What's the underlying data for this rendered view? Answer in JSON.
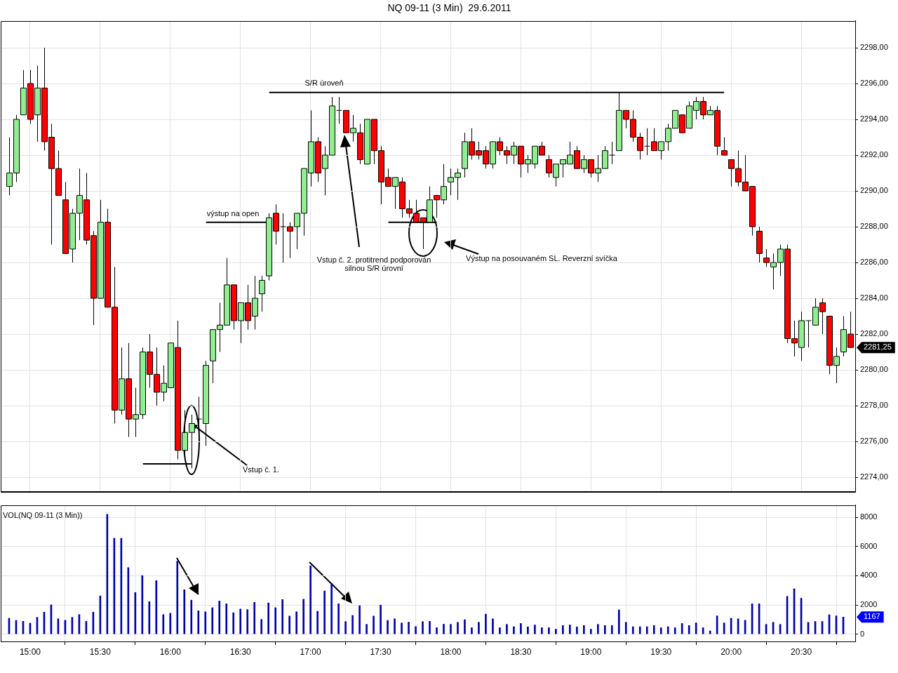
{
  "chart_data": [
    {
      "type": "candlestick",
      "title": "NQ 09-11 (3 Min)  29.6.2011",
      "x": [
        14.85,
        14.9,
        14.95,
        15,
        15.05,
        15.1,
        15.15,
        15.2,
        15.25,
        15.3,
        15.35,
        15.4,
        15.45,
        15.5,
        15.55,
        15.6,
        15.65,
        15.7,
        15.75,
        15.8,
        15.85,
        15.9,
        15.95,
        16,
        16.05,
        16.1,
        16.15,
        16.2,
        16.25,
        16.3,
        16.35,
        16.4,
        16.45,
        16.5,
        16.55,
        16.6,
        16.65,
        16.7,
        16.75,
        16.8,
        16.85,
        16.9,
        16.95,
        17,
        17.05,
        17.1,
        17.15,
        17.2,
        17.25,
        17.3,
        17.35,
        17.4,
        17.45,
        17.5,
        17.55,
        17.6,
        17.65,
        17.7,
        17.75,
        17.8,
        17.85,
        17.9,
        17.95,
        18,
        18.05,
        18.1,
        18.15,
        18.2,
        18.25,
        18.3,
        18.35,
        18.4,
        18.45,
        18.5,
        18.55,
        18.6,
        18.65,
        18.7,
        18.75,
        18.8,
        18.85,
        18.9,
        18.95,
        19,
        19.05,
        19.1,
        19.15,
        19.2,
        19.25,
        19.3,
        19.35,
        19.4,
        19.45,
        19.5,
        19.55,
        19.6,
        19.65,
        19.7,
        19.75,
        19.8,
        19.85,
        19.9,
        19.95,
        20,
        20.05,
        20.1,
        20.15,
        20.2,
        20.25,
        20.3,
        20.35,
        20.4,
        20.45,
        20.5,
        20.55,
        20.6,
        20.65,
        20.7,
        20.75,
        20.8,
        20.85
      ],
      "ohlc": [
        [
          2290.25,
          2293,
          2289.75,
          2291
        ],
        [
          2291,
          2294.25,
          2290.5,
          2294
        ],
        [
          2294.25,
          2296.75,
          2294.25,
          2295.75
        ],
        [
          2296,
          2296.75,
          2293.75,
          2294
        ],
        [
          2294.25,
          2297,
          2292.75,
          2295.75
        ],
        [
          2295.75,
          2298,
          2292.25,
          2292.75
        ],
        [
          2293,
          2293.75,
          2287,
          2291.25
        ],
        [
          2291.25,
          2292.25,
          2289.75,
          2289.75
        ],
        [
          2289.5,
          2290.5,
          2286.5,
          2286.5
        ],
        [
          2286.75,
          2289,
          2286,
          2288.75
        ],
        [
          2288.75,
          2291.25,
          2287.25,
          2289.75
        ],
        [
          2289.5,
          2291,
          2287,
          2287.25
        ],
        [
          2287.5,
          2287.75,
          2282.5,
          2284
        ],
        [
          2284,
          2289.5,
          2284,
          2288.25
        ],
        [
          2288.25,
          2289,
          2283.5,
          2283.5
        ],
        [
          2283.5,
          2285.75,
          2277,
          2277.75
        ],
        [
          2277.75,
          2281.25,
          2277.5,
          2279.5
        ],
        [
          2279.5,
          2281.5,
          2276.25,
          2277.25
        ],
        [
          2277.25,
          2279,
          2276.25,
          2277.5
        ],
        [
          2277.5,
          2281.25,
          2277.25,
          2281
        ],
        [
          2281,
          2282,
          2279,
          2279.75
        ],
        [
          2279.75,
          2281.25,
          2278,
          2278.75
        ],
        [
          2278.75,
          2280.25,
          2278.25,
          2279.25
        ],
        [
          2279,
          2281.5,
          2279,
          2281.5
        ],
        [
          2281.25,
          2282.75,
          2275,
          2275.5
        ],
        [
          2275.5,
          2277.75,
          2275,
          2276.5
        ],
        [
          2276.5,
          2277.5,
          2274.5,
          2277
        ],
        [
          2277.25,
          2278.5,
          2276.25,
          2277.25
        ],
        [
          2277,
          2280.5,
          2275.75,
          2280.25
        ],
        [
          2280.5,
          2282.25,
          2279.25,
          2282.25
        ],
        [
          2282.25,
          2283.75,
          2281,
          2282.5
        ],
        [
          2282.5,
          2286.25,
          2282.5,
          2284.75
        ],
        [
          2284.75,
          2284.75,
          2282.25,
          2282.75
        ],
        [
          2282.75,
          2283.75,
          2281.5,
          2283.75
        ],
        [
          2283.75,
          2284.75,
          2282.25,
          2282.75
        ],
        [
          2283,
          2285.25,
          2282.25,
          2284
        ],
        [
          2284.25,
          2285.25,
          2283.25,
          2285
        ],
        [
          2285.25,
          2288.75,
          2285,
          2288.5
        ],
        [
          2288.75,
          2289.25,
          2287,
          2287.75
        ],
        [
          2288,
          2288.75,
          2286,
          2288
        ],
        [
          2288,
          2288.25,
          2286.25,
          2287.75
        ],
        [
          2288,
          2288.75,
          2286.75,
          2288.75
        ],
        [
          2288.75,
          2291.25,
          2287.5,
          2291.25
        ],
        [
          2291,
          2294.5,
          2290.25,
          2292.75
        ],
        [
          2292.75,
          2293,
          2290.5,
          2291
        ],
        [
          2291.25,
          2292.5,
          2289.75,
          2292
        ],
        [
          2292,
          2295.25,
          2292,
          2294.75
        ],
        [
          2294.5,
          2295.25,
          2293.75,
          2294.5
        ],
        [
          2294.5,
          2294.5,
          2293.25,
          2293.25
        ],
        [
          2293.25,
          2294.25,
          2292.75,
          2293.5
        ],
        [
          2293.25,
          2293.75,
          2291.5,
          2291.75
        ],
        [
          2291.5,
          2294,
          2291.5,
          2294
        ],
        [
          2294,
          2294,
          2291.5,
          2292.25
        ],
        [
          2292.25,
          2292.5,
          2289.25,
          2290.5
        ],
        [
          2290.75,
          2291.25,
          2290.25,
          2290.25
        ],
        [
          2290.25,
          2290.75,
          2289,
          2290.75
        ],
        [
          2290.5,
          2290.75,
          2288.5,
          2289
        ],
        [
          2289,
          2289.5,
          2288.5,
          2288.75
        ],
        [
          2288.75,
          2289.5,
          2288.25,
          2288.25
        ],
        [
          2288.5,
          2288.5,
          2286.75,
          2288.25
        ],
        [
          2288.25,
          2290.25,
          2288.25,
          2289.5
        ],
        [
          2289.75,
          2289.75,
          2288.5,
          2289.5
        ],
        [
          2289.5,
          2291.5,
          2289.25,
          2290.25
        ],
        [
          2290.5,
          2291.25,
          2289.75,
          2290.75
        ],
        [
          2290.75,
          2291.25,
          2289.5,
          2291
        ],
        [
          2291.25,
          2293.25,
          2290.75,
          2292.75
        ],
        [
          2292.75,
          2293.5,
          2291.75,
          2292
        ],
        [
          2292.25,
          2292.75,
          2291.75,
          2292
        ],
        [
          2292.25,
          2292.5,
          2291.25,
          2291.5
        ],
        [
          2291.5,
          2292.75,
          2291.25,
          2292.75
        ],
        [
          2292.75,
          2293,
          2292,
          2292.25
        ],
        [
          2292.25,
          2292.5,
          2291.5,
          2292
        ],
        [
          2292,
          2292.75,
          2291.5,
          2292.5
        ],
        [
          2292.5,
          2292.5,
          2290.75,
          2291.5
        ],
        [
          2291.5,
          2292,
          2291,
          2291.75
        ],
        [
          2291.5,
          2292.5,
          2291.25,
          2292.5
        ],
        [
          2292.5,
          2292.75,
          2292,
          2292
        ],
        [
          2291.75,
          2292,
          2290.75,
          2291
        ],
        [
          2290.75,
          2291.5,
          2290.25,
          2291.5
        ],
        [
          2291.5,
          2291.75,
          2290.75,
          2291.75
        ],
        [
          2291.5,
          2292.75,
          2291.5,
          2292
        ],
        [
          2292.25,
          2292.5,
          2291.25,
          2291.25
        ],
        [
          2291.25,
          2292,
          2291,
          2291.75
        ],
        [
          2291.75,
          2291.75,
          2290.75,
          2291
        ],
        [
          2291,
          2292,
          2290.5,
          2291.25
        ],
        [
          2291.25,
          2292.5,
          2291.25,
          2292.25
        ],
        [
          2292,
          2292.75,
          2291.5,
          2292
        ],
        [
          2292.25,
          2295.5,
          2292.25,
          2294.5
        ],
        [
          2294.5,
          2294.5,
          2293.5,
          2294
        ],
        [
          2294,
          2294.5,
          2292.75,
          2293
        ],
        [
          2293,
          2293.25,
          2291.75,
          2292.25
        ],
        [
          2292.5,
          2293.5,
          2292,
          2292.5
        ],
        [
          2292.75,
          2293.5,
          2292.25,
          2292.25
        ],
        [
          2292.25,
          2292.75,
          2291.75,
          2292.75
        ],
        [
          2292.75,
          2293.75,
          2292.25,
          2293.5
        ],
        [
          2293.5,
          2294.5,
          2293.5,
          2294.5
        ],
        [
          2294.25,
          2294.25,
          2293.25,
          2293.25
        ],
        [
          2293.5,
          2295,
          2293.5,
          2294.75
        ],
        [
          2294.5,
          2295.25,
          2294,
          2295
        ],
        [
          2295,
          2295.25,
          2294,
          2294.25
        ],
        [
          2294.25,
          2294.75,
          2294.25,
          2294.5
        ],
        [
          2294.5,
          2294.75,
          2292,
          2292.5
        ],
        [
          2292.25,
          2293,
          2292,
          2292
        ],
        [
          2291.75,
          2291.75,
          2290.25,
          2291.25
        ],
        [
          2291.25,
          2292.25,
          2290.25,
          2290.5
        ],
        [
          2290.5,
          2292,
          2290,
          2290
        ],
        [
          2290.25,
          2290.25,
          2287.5,
          2288
        ],
        [
          2287.75,
          2288,
          2286,
          2286.5
        ],
        [
          2286.25,
          2286.75,
          2285.75,
          2286
        ],
        [
          2285.75,
          2286.5,
          2284.5,
          2286
        ],
        [
          2286,
          2287,
          2285.25,
          2286.75
        ],
        [
          2286.75,
          2287,
          2281.5,
          2281.75
        ],
        [
          2281.75,
          2282.75,
          2280.75,
          2281.5
        ],
        [
          2281.25,
          2283.25,
          2280.5,
          2282.75
        ],
        [
          2282.75,
          2282.75,
          2281.25,
          2282.75
        ],
        [
          2282.5,
          2284,
          2282.5,
          2283.5
        ],
        [
          2283.75,
          2284,
          2282,
          2283.25
        ],
        [
          2283,
          2283,
          2279.75,
          2280.25
        ],
        [
          2280.25,
          2281.25,
          2279.25,
          2280.75
        ],
        [
          2281,
          2283,
          2280.75,
          2282.25
        ],
        [
          2282,
          2283.25,
          2281.25,
          2281.25
        ]
      ],
      "colors": [
        "#90ee90",
        "#90ee90",
        "#90ee90",
        "#ff0000",
        "#90ee90",
        "#ff0000",
        "#ff0000",
        "#ff0000",
        "#ff0000",
        "#90ee90",
        "#90ee90",
        "#ff0000",
        "#ff0000",
        "#90ee90",
        "#ff0000",
        "#ff0000",
        "#90ee90",
        "#ff0000",
        "#90ee90",
        "#90ee90",
        "#ff0000",
        "#ff0000",
        "#90ee90",
        "#90ee90",
        "#ff0000",
        "#90ee90",
        "#90ee90",
        "#000000",
        "#90ee90",
        "#90ee90",
        "#90ee90",
        "#90ee90",
        "#ff0000",
        "#90ee90",
        "#ff0000",
        "#90ee90",
        "#90ee90",
        "#90ee90",
        "#ff0000",
        "#000000",
        "#ff0000",
        "#90ee90",
        "#90ee90",
        "#90ee90",
        "#ff0000",
        "#90ee90",
        "#90ee90",
        "#000000",
        "#ff0000",
        "#90ee90",
        "#ff0000",
        "#90ee90",
        "#ff0000",
        "#ff0000",
        "#ff0000",
        "#90ee90",
        "#ff0000",
        "#ff0000",
        "#ff0000",
        "#ff0000",
        "#90ee90",
        "#ff0000",
        "#90ee90",
        "#90ee90",
        "#90ee90",
        "#90ee90",
        "#ff0000",
        "#ff0000",
        "#ff0000",
        "#90ee90",
        "#ff0000",
        "#ff0000",
        "#90ee90",
        "#ff0000",
        "#90ee90",
        "#90ee90",
        "#ff0000",
        "#ff0000",
        "#90ee90",
        "#90ee90",
        "#90ee90",
        "#ff0000",
        "#90ee90",
        "#ff0000",
        "#90ee90",
        "#90ee90",
        "#000000",
        "#90ee90",
        "#ff0000",
        "#ff0000",
        "#ff0000",
        "#000000",
        "#ff0000",
        "#90ee90",
        "#90ee90",
        "#90ee90",
        "#ff0000",
        "#90ee90",
        "#90ee90",
        "#ff0000",
        "#90ee90",
        "#ff0000",
        "#ff0000",
        "#ff0000",
        "#ff0000",
        "#ff0000",
        "#ff0000",
        "#ff0000",
        "#ff0000",
        "#90ee90",
        "#90ee90",
        "#ff0000",
        "#ff0000",
        "#90ee90",
        "#000000",
        "#90ee90",
        "#ff0000",
        "#ff0000",
        "#90ee90",
        "#90ee90",
        "#ff0000"
      ],
      "xlim": [
        14.79,
        20.885
      ],
      "xticks": [
        {
          "value": 15,
          "label": null
        },
        {
          "value": 15.5,
          "label": null
        },
        {
          "value": 16,
          "label": null
        },
        {
          "value": 16.5,
          "label": null
        },
        {
          "value": 17,
          "label": null
        },
        {
          "value": 17.5,
          "label": null
        },
        {
          "value": 18,
          "label": null
        },
        {
          "value": 18.5,
          "label": null
        },
        {
          "value": 19,
          "label": null
        },
        {
          "value": 19.5,
          "label": null
        },
        {
          "value": 20,
          "label": null
        },
        {
          "value": 20.5,
          "label": null
        }
      ],
      "ylim": [
        2273.2,
        2299.5
      ],
      "yticks": [
        {
          "value": 2274,
          "label": "2274,00"
        },
        {
          "value": 2276,
          "label": "2276,00"
        },
        {
          "value": 2278,
          "label": "2278,00"
        },
        {
          "value": 2280,
          "label": "2280,00"
        },
        {
          "value": 2282,
          "label": "2282,00"
        },
        {
          "value": 2284,
          "label": "2284,00"
        },
        {
          "value": 2286,
          "label": "2286,00"
        },
        {
          "value": 2288,
          "label": "2288,00"
        },
        {
          "value": 2290,
          "label": "2290,00"
        },
        {
          "value": 2292,
          "label": "2292,00"
        },
        {
          "value": 2294,
          "label": "2294,00"
        },
        {
          "value": 2296,
          "label": "2296,00"
        },
        {
          "value": 2298,
          "label": "2298,00"
        }
      ],
      "grid": true,
      "tick_labels": "y",
      "series": [
        {
          "type": "line",
          "color": "#000000",
          "x": [
            16.705,
            19.95
          ],
          "values": [
            2295.5,
            2295.5
          ]
        },
        {
          "type": "line",
          "color": "#000000",
          "x": [
            16.255,
            16.705
          ],
          "values": [
            2288.25,
            2288.25
          ]
        },
        {
          "type": "line",
          "color": "#000000",
          "x": [
            17.555,
            17.9
          ],
          "values": [
            2288.25,
            2288.25
          ]
        },
        {
          "type": "line",
          "color": "#000000",
          "x": [
            15.805,
            16.15
          ],
          "values": [
            2274.75,
            2274.75
          ]
        }
      ],
      "annotations": [
        "S/R úroveň",
        "výstup na open",
        "Vstup č. 2. protitrend podporován silnou S/R úrovní",
        "Výstup na posouvaném SL. Reverzní svíčka",
        {
          "text": "Vstup č. 1.",
          "x": 16.15,
          "y": 2277
        },
        {
          "text": "2281,25",
          "x": 20.85,
          "y": 2281.25
        }
      ]
    },
    {
      "type": "bar",
      "title": "VOL(NQ 09-11 (3 Min))",
      "x": [
        14.85,
        14.9,
        14.95,
        15,
        15.05,
        15.1,
        15.15,
        15.2,
        15.25,
        15.3,
        15.35,
        15.4,
        15.45,
        15.5,
        15.55,
        15.6,
        15.65,
        15.7,
        15.75,
        15.8,
        15.85,
        15.9,
        15.95,
        16,
        16.05,
        16.1,
        16.15,
        16.2,
        16.25,
        16.3,
        16.35,
        16.4,
        16.45,
        16.5,
        16.55,
        16.6,
        16.65,
        16.7,
        16.75,
        16.8,
        16.85,
        16.9,
        16.95,
        17,
        17.05,
        17.1,
        17.15,
        17.2,
        17.25,
        17.3,
        17.35,
        17.4,
        17.45,
        17.5,
        17.55,
        17.6,
        17.65,
        17.7,
        17.75,
        17.8,
        17.85,
        17.9,
        17.95,
        18,
        18.05,
        18.1,
        18.15,
        18.2,
        18.25,
        18.3,
        18.35,
        18.4,
        18.45,
        18.5,
        18.55,
        18.6,
        18.65,
        18.7,
        18.75,
        18.8,
        18.85,
        18.9,
        18.95,
        19,
        19.05,
        19.1,
        19.15,
        19.2,
        19.25,
        19.3,
        19.35,
        19.4,
        19.45,
        19.5,
        19.55,
        19.6,
        19.65,
        19.7,
        19.75,
        19.8,
        19.85,
        19.9,
        19.95,
        20,
        20.05,
        20.1,
        20.15,
        20.2,
        20.25,
        20.3,
        20.35,
        20.4,
        20.45,
        20.5,
        20.55,
        20.6,
        20.65,
        20.7,
        20.75,
        20.8
      ],
      "values": [
        1090,
        940,
        880,
        750,
        1150,
        1510,
        2010,
        1050,
        950,
        1150,
        1340,
        880,
        1510,
        2620,
        8210,
        6570,
        6570,
        4560,
        2850,
        4010,
        2230,
        3670,
        1340,
        1430,
        5000,
        3040,
        2330,
        1600,
        1530,
        1810,
        2270,
        2080,
        1470,
        1720,
        1680,
        2180,
        1010,
        2140,
        1810,
        2370,
        1240,
        1530,
        2390,
        4680,
        1570,
        2960,
        3480,
        2080,
        860,
        1280,
        1950,
        670,
        1240,
        1990,
        940,
        1050,
        760,
        820,
        520,
        860,
        880,
        440,
        680,
        670,
        810,
        990,
        440,
        810,
        1370,
        1050,
        440,
        670,
        510,
        730,
        500,
        630,
        440,
        440,
        340,
        590,
        630,
        500,
        590,
        340,
        670,
        590,
        590,
        1660,
        810,
        510,
        510,
        510,
        590,
        440,
        510,
        440,
        730,
        590,
        770,
        440,
        220,
        1250,
        770,
        1090,
        1050,
        950,
        2080,
        2080,
        670,
        810,
        670,
        2590,
        3110,
        2460,
        810,
        870,
        870,
        1330,
        1250,
        1167
      ],
      "color": "#0000a8",
      "xlim": [
        14.79,
        20.885
      ],
      "xticks": [
        {
          "value": 15,
          "label": "15:00"
        },
        {
          "value": 15.5,
          "label": "15:30"
        },
        {
          "value": 16,
          "label": "16:00"
        },
        {
          "value": 16.5,
          "label": "16:30"
        },
        {
          "value": 17,
          "label": "17:00"
        },
        {
          "value": 17.5,
          "label": "17:30"
        },
        {
          "value": 18,
          "label": "18:00"
        },
        {
          "value": 18.5,
          "label": "18:30"
        },
        {
          "value": 19,
          "label": "19:00"
        },
        {
          "value": 19.5,
          "label": "19:30"
        },
        {
          "value": 20,
          "label": "20:00"
        },
        {
          "value": 20.5,
          "label": "20:30"
        }
      ],
      "ylim": [
        -500,
        8850
      ],
      "yticks": [
        0,
        2000,
        4000,
        6000,
        8000
      ],
      "grid": true,
      "annotations": [
        {
          "text": "1167",
          "x": 20.8,
          "y": 1167
        }
      ]
    }
  ]
}
